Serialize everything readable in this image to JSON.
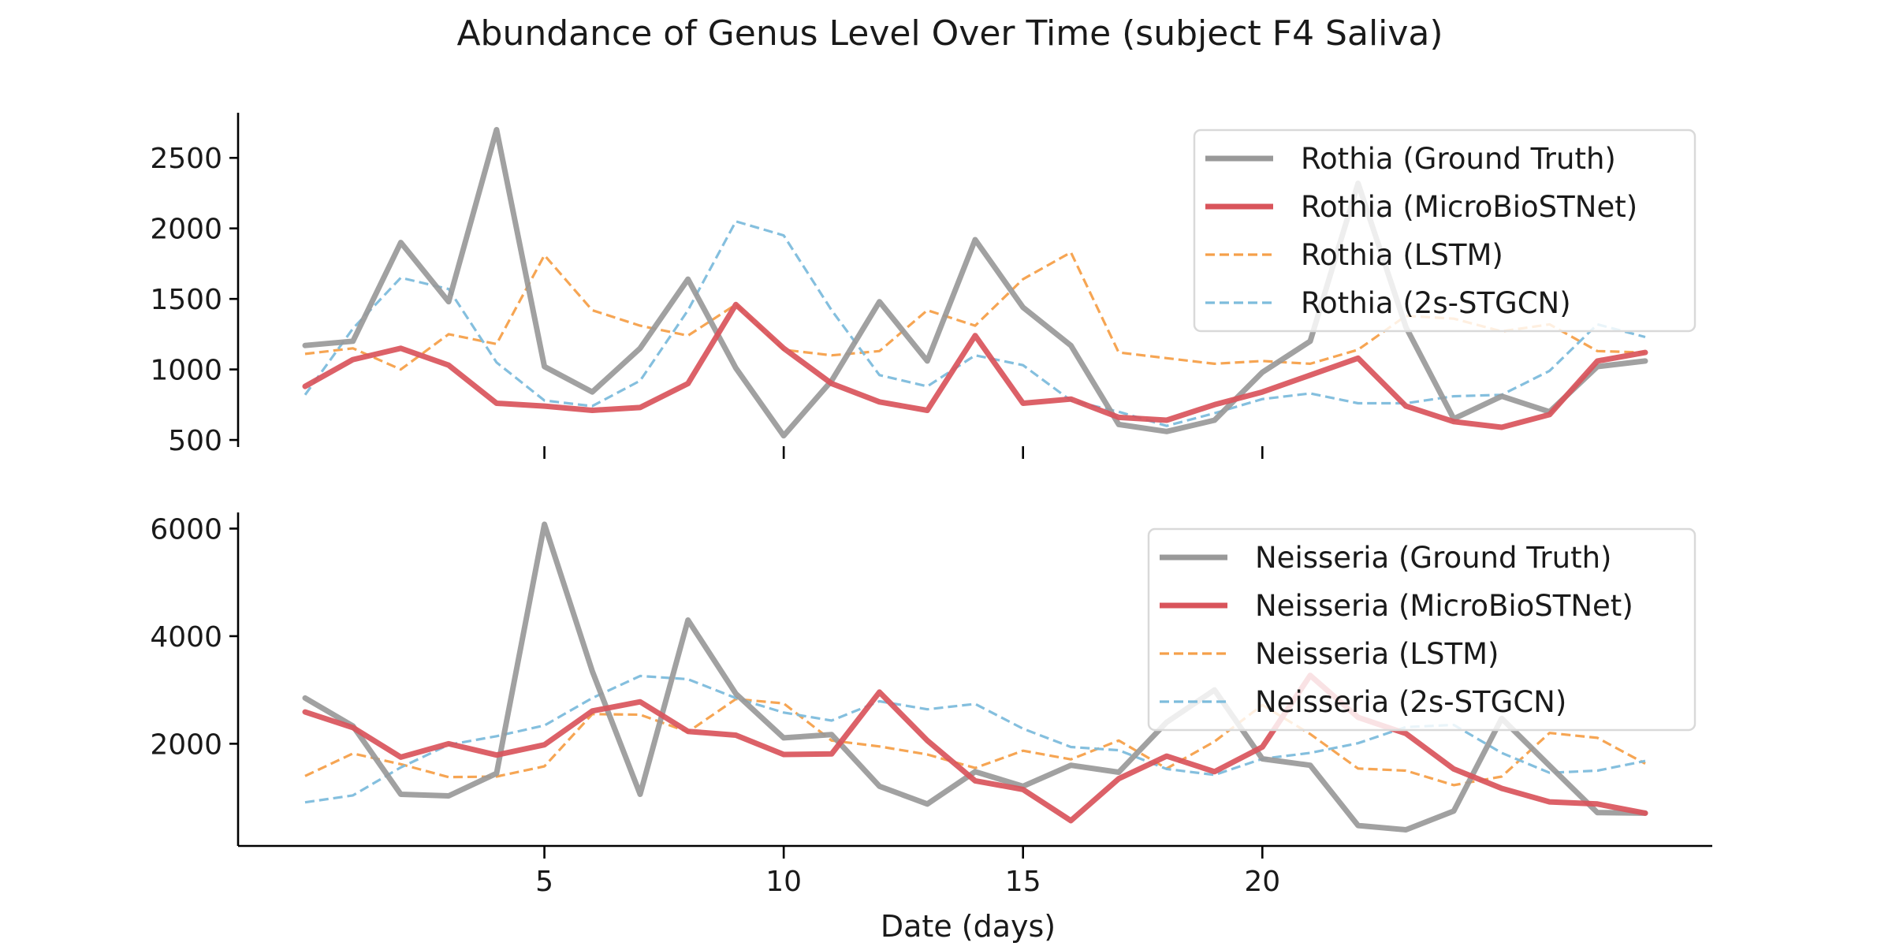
{
  "chart_data": {
    "type": "line",
    "title": "Abundance of Genus Level Over Time (subject F4 Saliva)",
    "xlabel": "Date (days)",
    "x": [
      0,
      1,
      2,
      3,
      4,
      5,
      6,
      7,
      8,
      9,
      10,
      11,
      12,
      13,
      14,
      15,
      16,
      17,
      18,
      19,
      20,
      21,
      22,
      23,
      24,
      25,
      26,
      27,
      28
    ],
    "xlim": [
      -1.4,
      29.4
    ],
    "xticks": [
      5,
      10,
      15,
      20
    ],
    "legend_position": "top-right",
    "styles": {
      "ground_truth": {
        "color": "#999999",
        "dash": "solid"
      },
      "microbiostnet": {
        "color": "#d9545b",
        "dash": "solid"
      },
      "lstm": {
        "color": "#f5a04a",
        "dash": "dashed"
      },
      "stgcn": {
        "color": "#7dbcdc",
        "dash": "dashed"
      }
    },
    "panels": [
      {
        "ylim": [
          450,
          2820
        ],
        "yticks": [
          500,
          1000,
          1500,
          2000,
          2500
        ],
        "series": [
          {
            "name": "Rothia (Ground Truth)",
            "style": "ground_truth",
            "values": [
              1170,
              1200,
              1900,
              1480,
              2700,
              1020,
              840,
              1150,
              1640,
              1010,
              530,
              920,
              1480,
              1060,
              1920,
              1440,
              1170,
              610,
              560,
              640,
              980,
              1200,
              2320,
              1300,
              650,
              810,
              700,
              1020,
              1060
            ]
          },
          {
            "name": "Rothia (MicroBioSTNet)",
            "style": "microbiostnet",
            "values": [
              880,
              1070,
              1150,
              1030,
              760,
              740,
              710,
              730,
              900,
              1460,
              1150,
              900,
              770,
              710,
              1240,
              760,
              790,
              660,
              640,
              750,
              840,
              960,
              1080,
              740,
              630,
              590,
              680,
              1060,
              1120
            ]
          },
          {
            "name": "Rothia (LSTM)",
            "style": "lstm",
            "values": [
              1110,
              1150,
              1000,
              1250,
              1180,
              1810,
              1420,
              1310,
              1240,
              1460,
              1140,
              1100,
              1130,
              1420,
              1310,
              1640,
              1830,
              1120,
              1080,
              1040,
              1060,
              1040,
              1140,
              1380,
              1360,
              1270,
              1320,
              1130,
              1120
            ]
          },
          {
            "name": "Rothia (2s-STGCN)",
            "style": "stgcn",
            "values": [
              820,
              1290,
              1650,
              1570,
              1050,
              780,
              740,
              920,
              1420,
              2050,
              1950,
              1420,
              960,
              880,
              1100,
              1030,
              780,
              700,
              600,
              690,
              790,
              830,
              760,
              760,
              810,
              820,
              990,
              1320,
              1230
            ]
          }
        ]
      },
      {
        "ylim": [
          100,
          6300
        ],
        "yticks": [
          2000,
          4000,
          6000
        ],
        "series": [
          {
            "name": "Neisseria (Ground Truth)",
            "style": "ground_truth",
            "values": [
              2850,
              2330,
              1060,
              1030,
              1450,
              6080,
              3350,
              1060,
              4300,
              2930,
              2110,
              2170,
              1210,
              880,
              1480,
              1210,
              1600,
              1470,
              2400,
              3000,
              1720,
              1600,
              480,
              400,
              750,
              2470,
              1590,
              720,
              710
            ]
          },
          {
            "name": "Neisseria (MicroBioSTNet)",
            "style": "microbiostnet",
            "values": [
              2590,
              2300,
              1750,
              2000,
              1790,
              1980,
              2610,
              2780,
              2230,
              2160,
              1800,
              1810,
              2960,
              2060,
              1310,
              1150,
              570,
              1350,
              1770,
              1480,
              1940,
              3270,
              2490,
              2190,
              1530,
              1170,
              920,
              880,
              710
            ]
          },
          {
            "name": "Neisseria (LSTM)",
            "style": "lstm",
            "values": [
              1400,
              1820,
              1620,
              1380,
              1390,
              1580,
              2550,
              2540,
              2220,
              2830,
              2750,
              2060,
              1950,
              1800,
              1550,
              1870,
              1710,
              2060,
              1540,
              2040,
              2720,
              2180,
              1540,
              1500,
              1230,
              1390,
              2200,
              2110,
              1630
            ]
          },
          {
            "name": "Neisseria (2s-STGCN)",
            "style": "stgcn",
            "values": [
              910,
              1040,
              1560,
              1980,
              2140,
              2340,
              2850,
              3260,
              3200,
              2850,
              2580,
              2430,
              2790,
              2640,
              2740,
              2280,
              1940,
              1880,
              1530,
              1420,
              1720,
              1830,
              2010,
              2310,
              2350,
              1830,
              1460,
              1500,
              1680
            ]
          }
        ]
      }
    ]
  }
}
